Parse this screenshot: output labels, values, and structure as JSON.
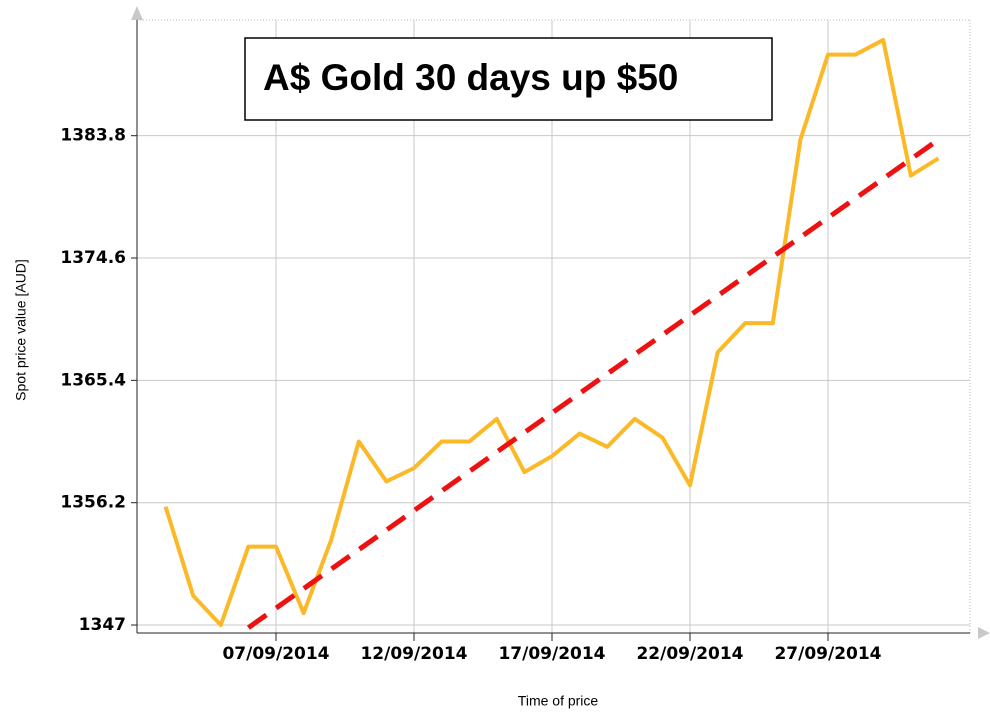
{
  "chart_data": {
    "type": "line",
    "title": "A$ Gold 30 days up $50",
    "x_label": "Time of price",
    "y_label": "Spot price value [AUD]",
    "x": [
      "2014-09-03",
      "2014-09-04",
      "2014-09-05",
      "2014-09-06",
      "2014-09-07",
      "2014-09-08",
      "2014-09-09",
      "2014-09-10",
      "2014-09-11",
      "2014-09-12",
      "2014-09-13",
      "2014-09-14",
      "2014-09-15",
      "2014-09-16",
      "2014-09-17",
      "2014-09-18",
      "2014-09-19",
      "2014-09-20",
      "2014-09-21",
      "2014-09-22",
      "2014-09-23",
      "2014-09-24",
      "2014-09-25",
      "2014-09-26",
      "2014-09-27",
      "2014-09-28",
      "2014-09-29",
      "2014-09-30",
      "2014-10-01"
    ],
    "series": [
      {
        "color": "#fbb827",
        "values": [
          1355.9,
          1349.2,
          1347.0,
          1352.9,
          1352.9,
          1347.9,
          1353.4,
          1360.8,
          1357.8,
          1358.8,
          1360.8,
          1360.8,
          1362.5,
          1358.5,
          1359.7,
          1361.4,
          1360.4,
          1362.5,
          1361.1,
          1357.5,
          1367.5,
          1369.7,
          1369.7,
          1383.5,
          1389.9,
          1389.9,
          1391.0,
          1380.8,
          1382.1
        ]
      }
    ],
    "trend": {
      "x": [
        "2014-09-06",
        "2014-10-01"
      ],
      "values": [
        1346.8,
        1383.5
      ],
      "color": "#ee1111"
    },
    "xlim": [
      "2014-09-02",
      "2014-10-02"
    ],
    "xticks": [
      {
        "value": "2014-09-07",
        "label": "07/09/2014"
      },
      {
        "value": "2014-09-12",
        "label": "12/09/2014"
      },
      {
        "value": "2014-09-17",
        "label": "17/09/2014"
      },
      {
        "value": "2014-09-22",
        "label": "22/09/2014"
      },
      {
        "value": "2014-09-27",
        "label": "27/09/2014"
      }
    ],
    "ylim": [
      1346.4,
      1392.5
    ],
    "yticks": [
      1347,
      1356.2,
      1365.4,
      1374.6,
      1383.8
    ],
    "grid": true
  }
}
